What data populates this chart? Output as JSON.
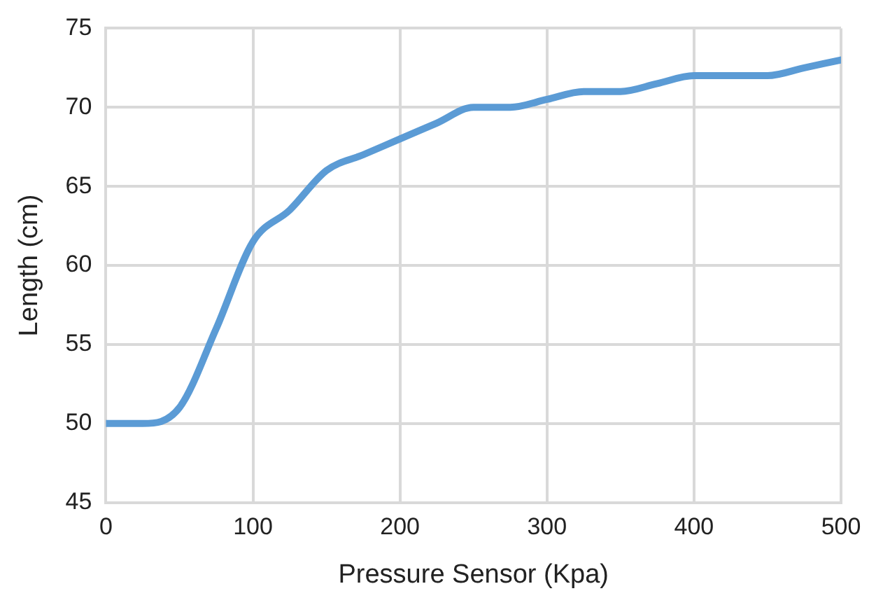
{
  "chart_data": {
    "type": "line",
    "xlabel": "Pressure Sensor (Kpa)",
    "ylabel": "Length (cm)",
    "x": [
      0,
      25,
      50,
      75,
      100,
      125,
      150,
      175,
      200,
      225,
      250,
      275,
      300,
      325,
      350,
      375,
      400,
      425,
      450,
      475,
      500
    ],
    "series": [
      {
        "color": "#5b9bd5",
        "values": [
          50,
          50,
          51,
          56,
          61.5,
          63.5,
          66,
          67,
          68,
          69,
          70,
          70,
          70.5,
          71,
          71,
          71.5,
          72,
          72,
          72,
          72.5,
          73
        ]
      }
    ],
    "xlim": [
      0,
      500
    ],
    "xticks": [
      0,
      100,
      200,
      300,
      400,
      500
    ],
    "ylim": [
      45,
      75
    ],
    "yticks": [
      45,
      50,
      55,
      60,
      65,
      70,
      75
    ],
    "grid": true,
    "legend": false,
    "marker": "none",
    "line_style": "solid"
  }
}
